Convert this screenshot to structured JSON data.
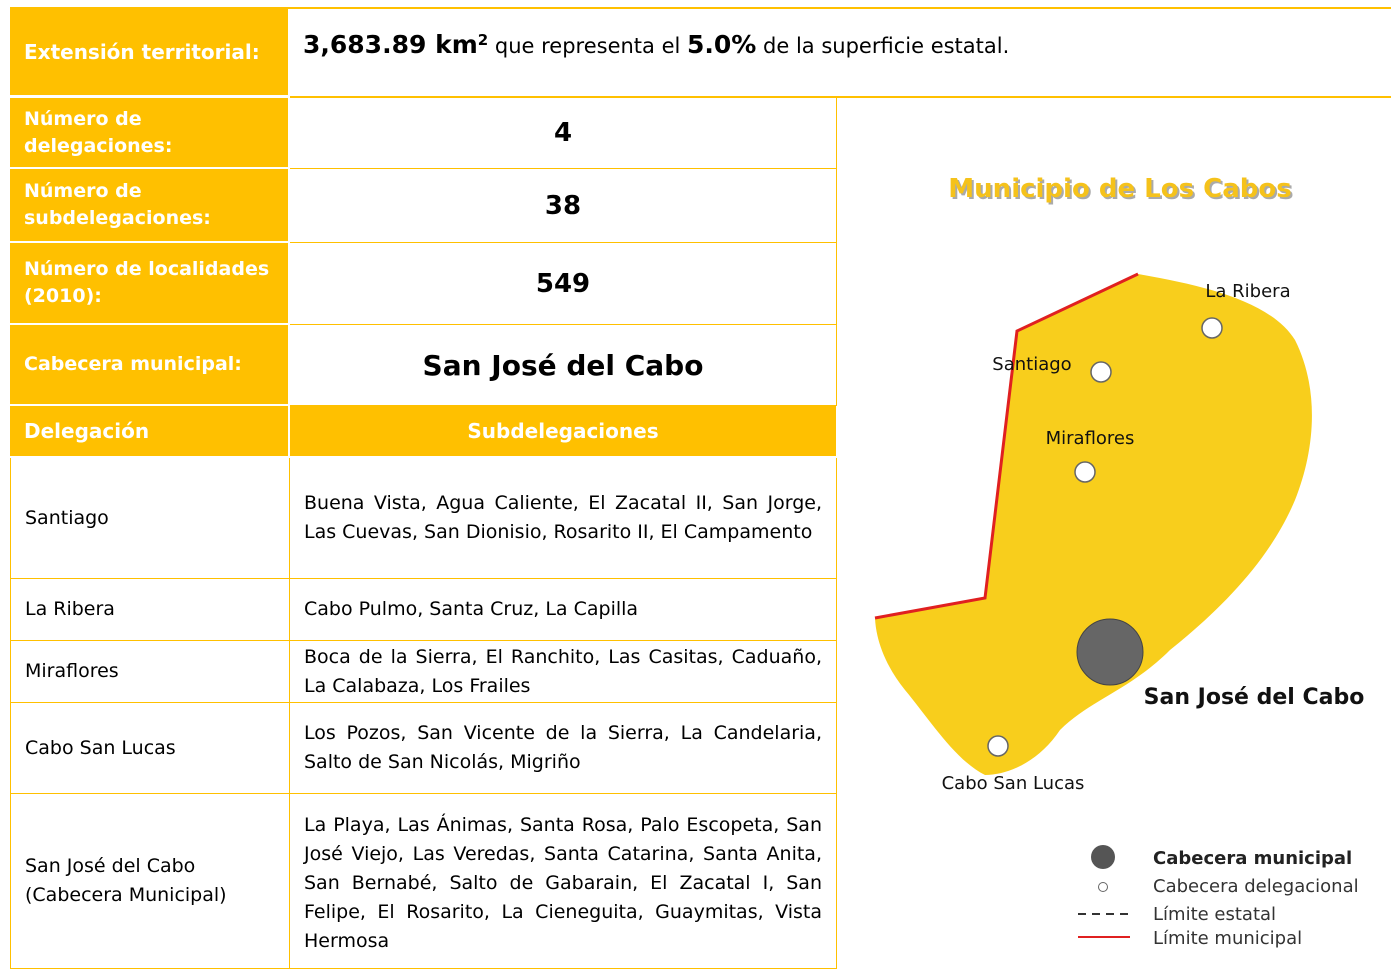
{
  "header": {
    "label": "Extensión territorial:",
    "area": "3,683.89 km",
    "area_sup": "2",
    "text1": "que representa el",
    "percent": "5.0%",
    "text2": "de la superficie estatal."
  },
  "summary": [
    {
      "label": "Número de delegaciones:",
      "value": "4"
    },
    {
      "label": "Número de subdelegaciones:",
      "value": "38"
    },
    {
      "label": "Número de localidades (2010):",
      "value": "549"
    },
    {
      "label": "Cabecera municipal:",
      "value": "San José del Cabo"
    }
  ],
  "table": {
    "headers": [
      "Delegación",
      "Subdelegaciones"
    ],
    "rows": [
      [
        "Santiago",
        "Buena Vista, Agua Caliente, El Zacatal II, San Jorge, Las Cuevas, San Dionisio, Rosarito II, El Campamento"
      ],
      [
        "La Ribera",
        "Cabo Pulmo, Santa Cruz, La Capilla"
      ],
      [
        "Miraflores",
        "Boca de la Sierra, El Ranchito, Las Casitas, Caduaño, La Calabaza, Los Frailes"
      ],
      [
        "Cabo San Lucas",
        "Los Pozos, San Vicente de la Sierra, La Candelaria, Salto de San Nicolás, Migriño"
      ],
      [
        "San José del Cabo (Cabecera Municipal)",
        "La Playa, Las Ánimas, Santa Rosa, Palo Escopeta, San José Viejo, Las Veredas, Santa Catarina, Santa Anita, San Bernabé, Salto de Gabarain, El Zacatal I, San Felipe, El Rosarito, La Cieneguita, Guaymitas, Vista Hermosa"
      ]
    ]
  },
  "map": {
    "title": "Municipio de Los Cabos",
    "places": [
      "La Ribera",
      "Santiago",
      "Miraflores",
      "San José del Cabo",
      "Cabo San Lucas"
    ],
    "legend": [
      "Cabecera municipal",
      "Cabecera delegacional",
      "Límite estatal",
      "Límite municipal"
    ]
  }
}
